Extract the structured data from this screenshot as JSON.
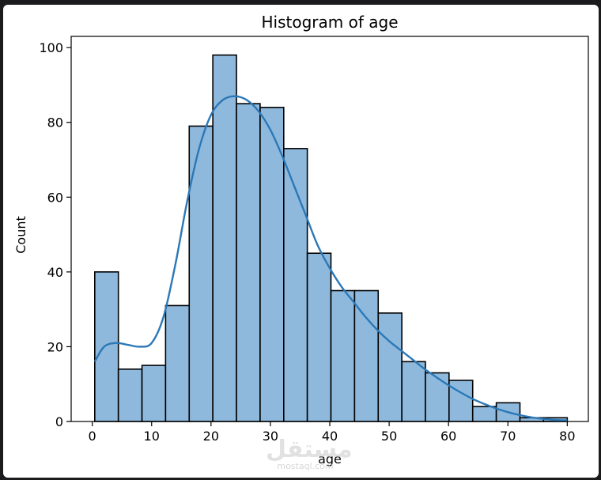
{
  "watermark": {
    "logo": "مستقل",
    "text": "mostaql.com"
  },
  "chart_data": {
    "type": "histogram",
    "title": "Histogram of age",
    "xlabel": "age",
    "ylabel": "Count",
    "xlim": [
      -3.55,
      83.55
    ],
    "ylim": [
      0,
      103
    ],
    "xticks": [
      0,
      10,
      20,
      30,
      40,
      50,
      60,
      70,
      80
    ],
    "yticks": [
      0,
      20,
      40,
      60,
      80,
      100
    ],
    "bar_color": "#8fb9dc",
    "bar_edge_color": "#000000",
    "kde_color": "#2b78b7",
    "grid": false,
    "bins": [
      {
        "x0": 0.42,
        "x1": 4.4,
        "count": 40
      },
      {
        "x0": 4.4,
        "x1": 8.38,
        "count": 14
      },
      {
        "x0": 8.38,
        "x1": 12.35,
        "count": 15
      },
      {
        "x0": 12.35,
        "x1": 16.33,
        "count": 31
      },
      {
        "x0": 16.33,
        "x1": 20.31,
        "count": 79
      },
      {
        "x0": 20.31,
        "x1": 24.29,
        "count": 98
      },
      {
        "x0": 24.29,
        "x1": 28.27,
        "count": 85
      },
      {
        "x0": 28.27,
        "x1": 32.25,
        "count": 84
      },
      {
        "x0": 32.25,
        "x1": 36.22,
        "count": 73
      },
      {
        "x0": 36.22,
        "x1": 40.2,
        "count": 45
      },
      {
        "x0": 40.2,
        "x1": 44.18,
        "count": 35
      },
      {
        "x0": 44.18,
        "x1": 48.16,
        "count": 35
      },
      {
        "x0": 48.16,
        "x1": 52.14,
        "count": 29
      },
      {
        "x0": 52.14,
        "x1": 56.11,
        "count": 16
      },
      {
        "x0": 56.11,
        "x1": 60.09,
        "count": 13
      },
      {
        "x0": 60.09,
        "x1": 64.07,
        "count": 11
      },
      {
        "x0": 64.07,
        "x1": 68.05,
        "count": 4
      },
      {
        "x0": 68.05,
        "x1": 72.03,
        "count": 5
      },
      {
        "x0": 72.03,
        "x1": 76.01,
        "count": 1
      },
      {
        "x0": 76.01,
        "x1": 80.0,
        "count": 1
      }
    ],
    "kde": {
      "x": [
        0.42,
        2,
        4,
        6,
        8,
        10,
        12,
        14,
        16,
        18,
        20,
        22,
        24,
        26,
        28,
        30,
        32,
        34,
        36,
        38,
        40,
        42,
        44,
        46,
        48,
        50,
        52,
        54,
        56,
        58,
        60,
        62,
        64,
        66,
        68,
        70,
        72,
        74,
        76,
        78,
        80
      ],
      "y": [
        16,
        20,
        21,
        20.5,
        20,
        21,
        28,
        42,
        59,
        73,
        82,
        86,
        87,
        86,
        83,
        78,
        71,
        63,
        55,
        47,
        41,
        36,
        32,
        28,
        24.5,
        21.5,
        19,
        16.5,
        14,
        11.8,
        9.7,
        7.8,
        6.1,
        4.7,
        3.5,
        2.5,
        1.7,
        1.1,
        0.7,
        0.4,
        0.3
      ]
    }
  }
}
